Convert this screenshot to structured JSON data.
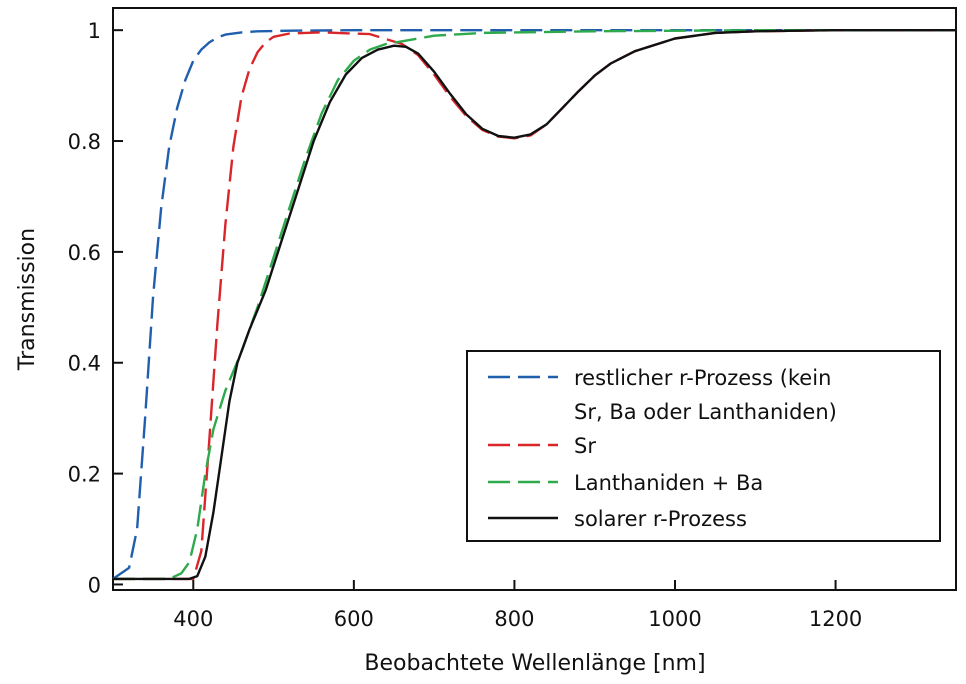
{
  "chart_data": {
    "type": "line",
    "title": "",
    "xlabel": "Beobachtete Wellenlänge [nm]",
    "ylabel": "Transmission",
    "xlim": [
      300,
      1350
    ],
    "ylim": [
      -0.01,
      1.04
    ],
    "x_ticks": [
      400,
      600,
      800,
      1000,
      1200
    ],
    "y_ticks": [
      0,
      0.2,
      0.4,
      0.6,
      0.8,
      1
    ],
    "y_tick_labels": [
      "0",
      "0.2",
      "0.4",
      "0.6",
      "0.8",
      "1"
    ],
    "grid": false,
    "legend_position": "bottom-right",
    "series": [
      {
        "name": [
          "restlicher r-Prozess (kein",
          "Sr, Ba oder Lanthaniden)"
        ],
        "color": "#1f5fae",
        "style": "dashed",
        "points": [
          [
            300,
            0.01
          ],
          [
            310,
            0.02
          ],
          [
            320,
            0.03
          ],
          [
            330,
            0.1
          ],
          [
            340,
            0.3
          ],
          [
            350,
            0.52
          ],
          [
            360,
            0.68
          ],
          [
            370,
            0.79
          ],
          [
            380,
            0.86
          ],
          [
            390,
            0.91
          ],
          [
            400,
            0.945
          ],
          [
            410,
            0.965
          ],
          [
            420,
            0.978
          ],
          [
            430,
            0.987
          ],
          [
            440,
            0.992
          ],
          [
            460,
            0.996
          ],
          [
            480,
            0.998
          ],
          [
            520,
            0.999
          ],
          [
            600,
            1.0
          ],
          [
            800,
            1.0
          ],
          [
            1000,
            1.0
          ],
          [
            1200,
            1.0
          ],
          [
            1350,
            1.0
          ]
        ]
      },
      {
        "name": "Sr",
        "color": "#d8262b",
        "style": "dashed",
        "points": [
          [
            300,
            0.01
          ],
          [
            400,
            0.01
          ],
          [
            410,
            0.06
          ],
          [
            420,
            0.26
          ],
          [
            430,
            0.47
          ],
          [
            440,
            0.65
          ],
          [
            450,
            0.79
          ],
          [
            460,
            0.88
          ],
          [
            470,
            0.93
          ],
          [
            480,
            0.96
          ],
          [
            490,
            0.978
          ],
          [
            500,
            0.988
          ],
          [
            520,
            0.994
          ],
          [
            560,
            0.996
          ],
          [
            620,
            0.993
          ],
          [
            660,
            0.975
          ],
          [
            680,
            0.955
          ],
          [
            700,
            0.92
          ],
          [
            720,
            0.88
          ],
          [
            740,
            0.845
          ],
          [
            760,
            0.82
          ],
          [
            780,
            0.808
          ],
          [
            800,
            0.805
          ],
          [
            820,
            0.81
          ],
          [
            840,
            0.83
          ],
          [
            860,
            0.86
          ],
          [
            880,
            0.89
          ],
          [
            900,
            0.918
          ],
          [
            920,
            0.94
          ],
          [
            950,
            0.962
          ],
          [
            1000,
            0.985
          ],
          [
            1050,
            0.995
          ],
          [
            1100,
            0.998
          ],
          [
            1200,
            1.0
          ],
          [
            1350,
            1.0
          ]
        ]
      },
      {
        "name": "Lanthaniden + Ba",
        "color": "#2eaa4c",
        "style": "dashed",
        "points": [
          [
            300,
            0.01
          ],
          [
            370,
            0.01
          ],
          [
            385,
            0.02
          ],
          [
            395,
            0.04
          ],
          [
            405,
            0.1
          ],
          [
            415,
            0.2
          ],
          [
            425,
            0.28
          ],
          [
            440,
            0.35
          ],
          [
            460,
            0.42
          ],
          [
            480,
            0.5
          ],
          [
            500,
            0.59
          ],
          [
            520,
            0.68
          ],
          [
            540,
            0.77
          ],
          [
            560,
            0.85
          ],
          [
            580,
            0.91
          ],
          [
            600,
            0.945
          ],
          [
            620,
            0.965
          ],
          [
            640,
            0.975
          ],
          [
            660,
            0.98
          ],
          [
            680,
            0.985
          ],
          [
            700,
            0.99
          ],
          [
            760,
            0.995
          ],
          [
            900,
            0.998
          ],
          [
            1100,
            1.0
          ],
          [
            1350,
            1.0
          ]
        ]
      },
      {
        "name": "solarer r-Prozess",
        "color": "#111111",
        "style": "solid",
        "points": [
          [
            300,
            0.01
          ],
          [
            395,
            0.01
          ],
          [
            405,
            0.015
          ],
          [
            415,
            0.05
          ],
          [
            425,
            0.13
          ],
          [
            435,
            0.23
          ],
          [
            445,
            0.33
          ],
          [
            455,
            0.4
          ],
          [
            470,
            0.46
          ],
          [
            490,
            0.53
          ],
          [
            510,
            0.62
          ],
          [
            530,
            0.71
          ],
          [
            550,
            0.8
          ],
          [
            570,
            0.87
          ],
          [
            590,
            0.92
          ],
          [
            610,
            0.95
          ],
          [
            630,
            0.965
          ],
          [
            650,
            0.972
          ],
          [
            665,
            0.97
          ],
          [
            680,
            0.958
          ],
          [
            700,
            0.925
          ],
          [
            720,
            0.885
          ],
          [
            740,
            0.848
          ],
          [
            760,
            0.822
          ],
          [
            780,
            0.809
          ],
          [
            800,
            0.806
          ],
          [
            820,
            0.812
          ],
          [
            840,
            0.83
          ],
          [
            860,
            0.86
          ],
          [
            880,
            0.89
          ],
          [
            900,
            0.918
          ],
          [
            920,
            0.94
          ],
          [
            950,
            0.962
          ],
          [
            1000,
            0.985
          ],
          [
            1050,
            0.995
          ],
          [
            1100,
            0.998
          ],
          [
            1200,
            1.0
          ],
          [
            1350,
            1.0
          ]
        ]
      }
    ]
  }
}
